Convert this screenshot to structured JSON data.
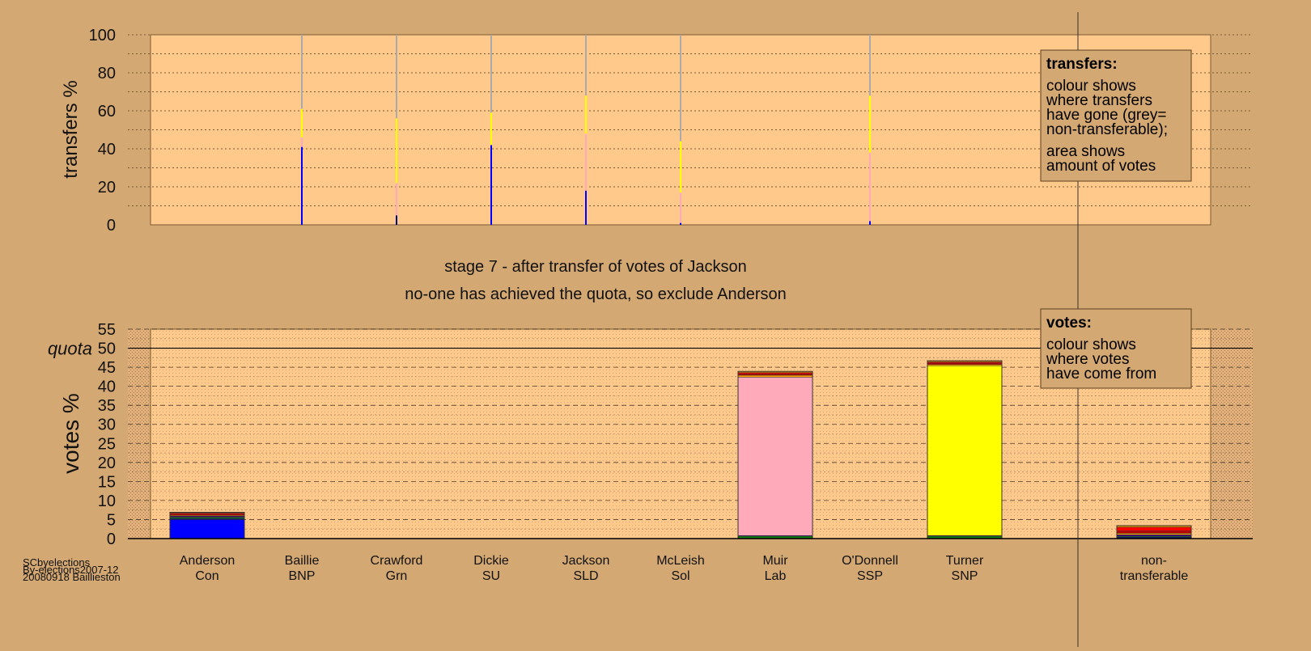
{
  "page": {
    "stage_title": "stage 7 - after transfer of votes of Jackson",
    "stage_note": "no-one has achieved the quota, so exclude Anderson",
    "footer": [
      "SCbyelections",
      "By-elections2007-12",
      "20080918 Baillieston"
    ]
  },
  "legend": {
    "transfers": {
      "title": "transfers:",
      "lines": [
        "colour shows",
        "where transfers",
        "have gone (grey=",
        "non-transferable);",
        "area shows",
        "amount of votes"
      ]
    },
    "votes": {
      "title": "votes:",
      "lines": [
        "colour shows",
        "where votes",
        "have come from"
      ]
    }
  },
  "colors": {
    "background": "#d4a872",
    "plot": "#ffc98c",
    "Con": "#0000ff",
    "BNP": "#000080",
    "Grn": "#00a000",
    "SU": "#400080",
    "SLD": "#ffa500",
    "Sol": "#c00000",
    "Lab": "#ffaabb",
    "SSP": "#ff0000",
    "SNP": "#ffff00",
    "nontransferable": "#aaaaaa"
  },
  "chart_data": [
    {
      "type": "bar",
      "ylabel": "transfers %",
      "ylim": [
        0,
        100
      ],
      "yticks": [
        0,
        20,
        40,
        60,
        80,
        100
      ],
      "stacked": true,
      "categories": [
        "Anderson",
        "Baillie",
        "Crawford",
        "Dickie",
        "Jackson",
        "McLeish",
        "Muir",
        "O'Donnell",
        "Turner",
        "non-transferable"
      ],
      "series": [
        {
          "color_key": "Con",
          "values": [
            0,
            41,
            0,
            42,
            18,
            1,
            0,
            2,
            0,
            0
          ]
        },
        {
          "color_key": "BNP",
          "values": [
            0,
            0,
            5,
            0,
            0,
            0,
            0,
            0,
            0,
            0
          ]
        },
        {
          "color_key": "Lab",
          "values": [
            0,
            5,
            17,
            0,
            30,
            16,
            0,
            36,
            0,
            0
          ]
        },
        {
          "color_key": "SNP",
          "values": [
            0,
            15,
            34,
            17,
            20,
            27,
            0,
            30,
            0,
            0
          ]
        },
        {
          "color_key": "nontransferable",
          "values": [
            0,
            39,
            44,
            41,
            32,
            56,
            0,
            32,
            0,
            0
          ]
        }
      ]
    },
    {
      "type": "bar",
      "ylabel": "votes %",
      "ylim": [
        0,
        55
      ],
      "yticks": [
        0,
        5,
        10,
        15,
        20,
        25,
        30,
        35,
        40,
        45,
        50,
        55
      ],
      "quota": 50,
      "quota_label": "quota",
      "stacked": true,
      "categories": [
        "Anderson",
        "Baillie",
        "Crawford",
        "Dickie",
        "Jackson",
        "McLeish",
        "Muir",
        "O'Donnell",
        "Turner",
        "non-transferable"
      ],
      "parties": [
        "Con",
        "BNP",
        "Grn",
        "SU",
        "SLD",
        "Sol",
        "Lab",
        "SSP",
        "SNP",
        ""
      ],
      "series": [
        {
          "color_key": "Con",
          "values": [
            5.0,
            0,
            0,
            0,
            0,
            0,
            0,
            0,
            0,
            0
          ]
        },
        {
          "color_key": "BNP",
          "values": [
            0.3,
            0,
            0,
            0,
            0,
            0,
            0.2,
            0,
            0.2,
            0.4
          ]
        },
        {
          "color_key": "Grn",
          "values": [
            0.3,
            0,
            0,
            0,
            0,
            0,
            0.4,
            0,
            0.4,
            0.2
          ]
        },
        {
          "color_key": "SU",
          "values": [
            0.3,
            0,
            0,
            0,
            0,
            0,
            0.2,
            0,
            0.2,
            0.4
          ]
        },
        {
          "color_key": "Lab",
          "values": [
            0,
            0,
            0,
            0,
            0,
            0,
            41.6,
            0,
            0,
            0
          ]
        },
        {
          "color_key": "SNP",
          "values": [
            0,
            0,
            0,
            0,
            0,
            0,
            0,
            0,
            44.6,
            0
          ]
        },
        {
          "color_key": "SLD",
          "values": [
            0.2,
            0,
            0,
            0,
            0,
            0,
            0.5,
            0,
            0.3,
            0.4
          ]
        },
        {
          "color_key": "Sol",
          "values": [
            0.3,
            0,
            0,
            0,
            0,
            0,
            0.4,
            0,
            0.4,
            0.6
          ]
        },
        {
          "color_key": "SSP",
          "values": [
            0.3,
            0,
            0,
            0,
            0,
            0,
            0.3,
            0,
            0.3,
            1.0
          ]
        },
        {
          "color_key": "SLD",
          "values": [
            0.2,
            0,
            0,
            0,
            0,
            0,
            0.3,
            0,
            0.3,
            0.4
          ]
        }
      ]
    }
  ]
}
